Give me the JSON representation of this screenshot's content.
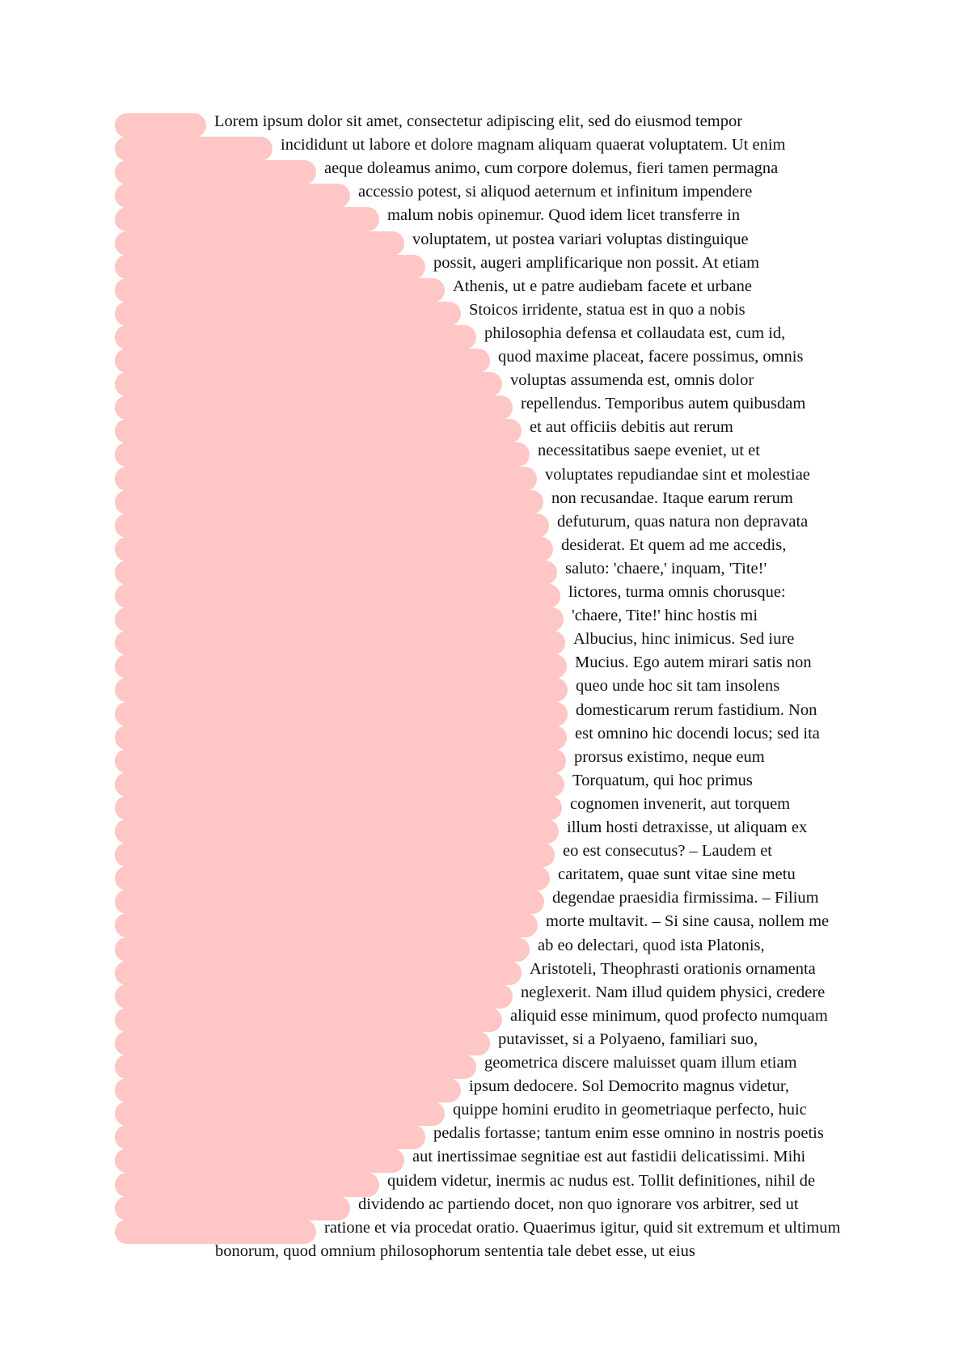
{
  "document": {
    "lines": [
      "Lorem ipsum dolor sit amet, consectetur adipiscing elit, sed do eiusmod tempor",
      "incididunt ut labore et dolore magnam aliquam quaerat voluptatem. Ut enim",
      "aeque doleamus animo, cum corpore dolemus, fieri tamen permagna",
      "accessio potest, si aliquod aeternum et infinitum impendere",
      "malum nobis opinemur. Quod idem licet transferre in",
      "voluptatem, ut postea variari voluptas distinguique",
      "possit, augeri amplificarique non possit. At etiam",
      "Athenis, ut e patre audiebam facete et urbane",
      "Stoicos irridente, statua est in quo a nobis",
      "philosophia defensa et collaudata est, cum id,",
      "quod maxime placeat, facere possimus, omnis",
      "voluptas assumenda est, omnis dolor",
      "repellendus. Temporibus autem quibusdam",
      "et aut officiis debitis aut rerum",
      "necessitatibus saepe eveniet, ut et",
      "voluptates repudiandae sint et molestiae",
      "non recusandae. Itaque earum rerum",
      "defuturum, quas natura non depravata",
      "desiderat. Et quem ad me accedis,",
      "saluto: 'chaere,' inquam, 'Tite!'",
      "lictores, turma omnis chorusque:",
      "'chaere, Tite!' hinc hostis mi",
      "Albucius, hinc inimicus. Sed iure",
      "Mucius. Ego autem mirari satis non",
      "queo unde hoc sit tam insolens",
      "domesticarum rerum fastidium. Non",
      "est omnino hic docendi locus; sed ita",
      "prorsus existimo, neque eum",
      "Torquatum, qui hoc primus",
      "cognomen invenerit, aut torquem",
      "illum hosti detraxisse, ut aliquam ex",
      "eo est consecutus? – Laudem et",
      "caritatem, quae sunt vitae sine metu",
      "degendae praesidia firmissima. – Filium",
      "morte multavit. – Si sine causa, nollem me",
      "ab eo delectari, quod ista Platonis,",
      "Aristoteli, Theophrasti orationis ornamenta",
      "neglexerit. Nam illud quidem physici, credere",
      "aliquid esse minimum, quod profecto numquam",
      "putavisset, si a Polyaeno, familiari suo,",
      "geometrica discere maluisset quam illum etiam",
      "ipsum dedocere. Sol Democrito magnus videtur,",
      "quippe homini erudito in geometriaque perfecto, huic",
      "pedalis fortasse; tantum enim esse omnino in nostris poetis",
      "aut inertissimae segnitiae est aut fastidii delicatissimi. Mihi",
      "quidem videtur, inermis ac nudus est. Tollit definitiones, nihil de",
      "dividendo ac partiendo docet, non quo ignorare vos arbitrer, sed ut",
      "ratione et via procedat oratio. Quaerimus igitur, quid sit extremum et ultimum",
      "bonorum, quod omnium philosophorum sententia tale debet esse, ut eius"
    ]
  },
  "colors": {
    "highlight": "#fec6c4",
    "text": "#111111",
    "background": "#ffffff"
  }
}
